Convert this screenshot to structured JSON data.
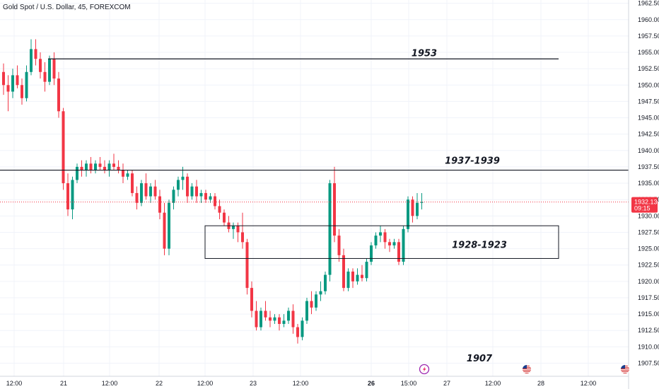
{
  "header": {
    "symbol_title": "Gold Spot / U.S. Dollar, 45, FOREXCOM"
  },
  "colors": {
    "up": "#089981",
    "down": "#f23645",
    "line": "#131722",
    "grid": "#f0f3fa",
    "price_tag": "#f23645"
  },
  "icons": [
    "lightning-icon",
    "us-flag-icon",
    "us-flag-icon"
  ],
  "price_tag": {
    "price": "1932.13",
    "countdown": "09:15"
  },
  "chart_data": {
    "type": "candlestick",
    "title": "Gold Spot / U.S. Dollar, 45, FOREXCOM",
    "ylim": [
      1905.5,
      1963
    ],
    "y_ticks": [
      "1907.50",
      "1910.00",
      "1912.50",
      "1915.00",
      "1917.50",
      "1920.00",
      "1922.50",
      "1925.00",
      "1927.50",
      "1930.00",
      "1932.50",
      "1935.00",
      "1937.50",
      "1940.00",
      "1942.50",
      "1945.00",
      "1947.50",
      "1950.00",
      "1952.50",
      "1955.00",
      "1957.50",
      "1960.00",
      "1962.50"
    ],
    "x_ticks": [
      {
        "label": "12:00",
        "bold": false
      },
      {
        "label": "21",
        "bold": false
      },
      {
        "label": "12:00",
        "bold": false
      },
      {
        "label": "22",
        "bold": false
      },
      {
        "label": "12:00",
        "bold": false
      },
      {
        "label": "23",
        "bold": false
      },
      {
        "label": "12:00",
        "bold": false
      },
      {
        "label": "26",
        "bold": true
      },
      {
        "label": "15:00",
        "bold": false
      },
      {
        "label": "27",
        "bold": false
      },
      {
        "label": "12:00",
        "bold": false
      },
      {
        "label": "28",
        "bold": false
      },
      {
        "label": "12:00",
        "bold": false
      }
    ],
    "candles": [
      [
        1952.0,
        1953.3,
        1948.5,
        1950.0
      ],
      [
        1950.0,
        1951.5,
        1946.0,
        1949.0
      ],
      [
        1949.0,
        1952.5,
        1948.0,
        1951.5
      ],
      [
        1951.5,
        1953.0,
        1949.5,
        1950.0
      ],
      [
        1950.0,
        1951.0,
        1947.0,
        1948.0
      ],
      [
        1948.0,
        1953.0,
        1947.5,
        1952.0
      ],
      [
        1952.0,
        1957.0,
        1951.5,
        1955.5
      ],
      [
        1955.5,
        1957.0,
        1953.0,
        1954.0
      ],
      [
        1954.0,
        1955.0,
        1951.0,
        1952.0
      ],
      [
        1952.0,
        1953.5,
        1949.0,
        1950.5
      ],
      [
        1950.5,
        1954.5,
        1950.0,
        1954.0
      ],
      [
        1954.0,
        1955.0,
        1950.0,
        1951.0
      ],
      [
        1951.0,
        1952.0,
        1945.0,
        1946.0
      ],
      [
        1946.0,
        1946.5,
        1934.0,
        1935.0
      ],
      [
        1935.0,
        1936.5,
        1930.0,
        1931.0
      ],
      [
        1931.0,
        1936.0,
        1929.5,
        1935.5
      ],
      [
        1935.5,
        1938.0,
        1935.0,
        1937.5
      ],
      [
        1937.5,
        1938.5,
        1936.0,
        1937.0
      ],
      [
        1937.0,
        1938.5,
        1936.0,
        1938.0
      ],
      [
        1938.0,
        1939.0,
        1936.5,
        1937.0
      ],
      [
        1937.0,
        1938.5,
        1936.5,
        1938.0
      ],
      [
        1938.0,
        1939.0,
        1937.0,
        1937.5
      ],
      [
        1937.5,
        1938.5,
        1936.5,
        1937.0
      ],
      [
        1937.0,
        1938.5,
        1936.0,
        1938.0
      ],
      [
        1938.0,
        1939.5,
        1937.0,
        1937.5
      ],
      [
        1937.5,
        1938.5,
        1936.5,
        1937.0
      ],
      [
        1937.0,
        1938.0,
        1935.0,
        1936.0
      ],
      [
        1936.0,
        1937.0,
        1935.5,
        1936.5
      ],
      [
        1936.5,
        1937.0,
        1933.0,
        1933.5
      ],
      [
        1933.5,
        1934.5,
        1931.0,
        1932.0
      ],
      [
        1932.0,
        1935.5,
        1931.5,
        1935.0
      ],
      [
        1935.0,
        1936.5,
        1932.5,
        1933.0
      ],
      [
        1933.0,
        1935.0,
        1932.0,
        1934.5
      ],
      [
        1934.5,
        1935.5,
        1932.5,
        1933.0
      ],
      [
        1933.0,
        1934.0,
        1929.5,
        1930.5
      ],
      [
        1930.5,
        1932.0,
        1924.0,
        1925.0
      ],
      [
        1925.0,
        1932.5,
        1924.0,
        1932.0
      ],
      [
        1932.0,
        1934.5,
        1931.0,
        1934.0
      ],
      [
        1934.0,
        1936.0,
        1933.0,
        1935.5
      ],
      [
        1935.5,
        1937.5,
        1934.0,
        1936.0
      ],
      [
        1936.0,
        1936.5,
        1932.0,
        1933.0
      ],
      [
        1933.0,
        1935.0,
        1932.5,
        1934.5
      ],
      [
        1934.5,
        1935.5,
        1932.0,
        1933.0
      ],
      [
        1933.0,
        1934.0,
        1932.0,
        1933.5
      ],
      [
        1933.5,
        1934.0,
        1932.0,
        1932.5
      ],
      [
        1932.5,
        1933.5,
        1932.0,
        1933.0
      ],
      [
        1933.0,
        1933.5,
        1931.0,
        1931.5
      ],
      [
        1931.5,
        1932.5,
        1929.5,
        1930.5
      ],
      [
        1930.5,
        1931.0,
        1928.5,
        1929.0
      ],
      [
        1929.0,
        1930.0,
        1927.5,
        1928.0
      ],
      [
        1928.0,
        1929.0,
        1926.5,
        1928.5
      ],
      [
        1928.5,
        1929.0,
        1926.0,
        1927.5
      ],
      [
        1927.5,
        1930.5,
        1925.0,
        1926.0
      ],
      [
        1926.0,
        1926.5,
        1918.0,
        1919.0
      ],
      [
        1919.0,
        1920.0,
        1914.5,
        1915.5
      ],
      [
        1915.5,
        1917.0,
        1912.5,
        1913.0
      ],
      [
        1913.0,
        1916.0,
        1912.5,
        1915.5
      ],
      [
        1915.5,
        1917.0,
        1914.0,
        1914.5
      ],
      [
        1914.5,
        1915.5,
        1913.0,
        1914.0
      ],
      [
        1914.0,
        1915.0,
        1913.5,
        1914.5
      ],
      [
        1914.5,
        1915.0,
        1912.5,
        1913.5
      ],
      [
        1913.5,
        1915.0,
        1913.0,
        1914.0
      ],
      [
        1914.0,
        1916.0,
        1913.5,
        1915.5
      ],
      [
        1915.5,
        1916.5,
        1912.0,
        1913.0
      ],
      [
        1913.0,
        1913.5,
        1910.5,
        1911.5
      ],
      [
        1911.5,
        1914.5,
        1911.0,
        1914.0
      ],
      [
        1914.0,
        1917.5,
        1913.5,
        1917.0
      ],
      [
        1917.0,
        1918.5,
        1915.0,
        1916.0
      ],
      [
        1916.0,
        1918.5,
        1915.5,
        1918.0
      ],
      [
        1918.0,
        1920.0,
        1917.0,
        1918.5
      ],
      [
        1918.5,
        1921.5,
        1918.0,
        1921.0
      ],
      [
        1921.0,
        1935.5,
        1920.0,
        1935.0
      ],
      [
        1935.0,
        1937.5,
        1926.0,
        1927.0
      ],
      [
        1927.0,
        1928.0,
        1923.0,
        1924.0
      ],
      [
        1924.0,
        1925.0,
        1918.5,
        1919.0
      ],
      [
        1919.0,
        1922.0,
        1918.5,
        1921.5
      ],
      [
        1921.5,
        1922.0,
        1919.0,
        1920.0
      ],
      [
        1920.0,
        1922.0,
        1919.5,
        1921.0
      ],
      [
        1921.0,
        1922.5,
        1920.0,
        1920.5
      ],
      [
        1920.5,
        1923.5,
        1920.0,
        1923.0
      ],
      [
        1923.0,
        1926.0,
        1922.5,
        1925.5
      ],
      [
        1925.5,
        1927.5,
        1925.0,
        1927.0
      ],
      [
        1927.0,
        1928.5,
        1926.0,
        1927.5
      ],
      [
        1927.5,
        1928.0,
        1925.0,
        1926.0
      ],
      [
        1926.0,
        1926.5,
        1924.5,
        1925.5
      ],
      [
        1925.5,
        1926.5,
        1925.0,
        1926.0
      ],
      [
        1926.0,
        1926.5,
        1922.5,
        1923.0
      ],
      [
        1923.0,
        1928.5,
        1922.5,
        1928.0
      ],
      [
        1928.0,
        1933.0,
        1927.5,
        1932.5
      ],
      [
        1932.5,
        1933.0,
        1929.0,
        1930.0
      ],
      [
        1930.0,
        1933.5,
        1929.5,
        1932.0
      ],
      [
        1932.0,
        1933.5,
        1931.0,
        1932.13
      ]
    ],
    "levels": [
      {
        "label": "1953",
        "price": 1954.0
      },
      {
        "label": "1937-1939",
        "price": 1937.0
      }
    ],
    "zone": {
      "label": "1928-1923",
      "top": 1928.5,
      "bottom": 1923.5
    },
    "notes": [
      {
        "label": "1907",
        "price": 1908.2
      }
    ]
  }
}
